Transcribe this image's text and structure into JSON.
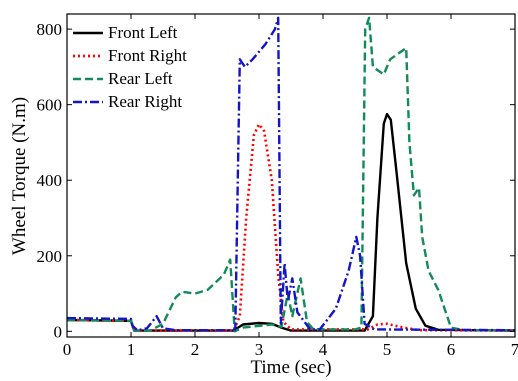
{
  "chart_data": {
    "type": "line",
    "xlabel": "Time (sec)",
    "ylabel": "Wheel Torque (N.m)",
    "xlim": [
      0,
      7
    ],
    "ylim": [
      -15,
      840
    ],
    "x_ticks": [
      0,
      1,
      2,
      3,
      4,
      5,
      6,
      7
    ],
    "y_ticks": [
      0,
      200,
      400,
      600,
      800
    ],
    "grid": false,
    "legend_position": "top-left",
    "series": [
      {
        "name": "Front Left",
        "color": "#000000",
        "dash": "solid",
        "points": [
          [
            0,
            30
          ],
          [
            1.0,
            28
          ],
          [
            1.05,
            2
          ],
          [
            2.6,
            2
          ],
          [
            2.75,
            18
          ],
          [
            3.0,
            22
          ],
          [
            3.2,
            20
          ],
          [
            3.35,
            10
          ],
          [
            3.5,
            2
          ],
          [
            4.65,
            2
          ],
          [
            4.78,
            40
          ],
          [
            4.85,
            300
          ],
          [
            4.95,
            550
          ],
          [
            5.0,
            575
          ],
          [
            5.06,
            560
          ],
          [
            5.15,
            420
          ],
          [
            5.3,
            180
          ],
          [
            5.45,
            60
          ],
          [
            5.6,
            15
          ],
          [
            5.8,
            4
          ],
          [
            7.0,
            2
          ]
        ]
      },
      {
        "name": "Front Right",
        "color": "#ff0000",
        "dash": "dot",
        "points": [
          [
            0,
            30
          ],
          [
            1.0,
            28
          ],
          [
            1.05,
            2
          ],
          [
            2.6,
            2
          ],
          [
            2.7,
            40
          ],
          [
            2.8,
            300
          ],
          [
            2.92,
            520
          ],
          [
            3.0,
            548
          ],
          [
            3.08,
            530
          ],
          [
            3.2,
            400
          ],
          [
            3.3,
            150
          ],
          [
            3.38,
            25
          ],
          [
            3.5,
            5
          ],
          [
            4.7,
            5
          ],
          [
            4.85,
            18
          ],
          [
            5.0,
            20
          ],
          [
            5.2,
            12
          ],
          [
            5.5,
            3
          ],
          [
            7.0,
            2
          ]
        ]
      },
      {
        "name": "Rear Left",
        "color": "#138a5a",
        "dash": "dash",
        "points": [
          [
            0,
            30
          ],
          [
            1.0,
            28
          ],
          [
            1.05,
            2
          ],
          [
            1.3,
            2
          ],
          [
            1.5,
            20
          ],
          [
            1.7,
            90
          ],
          [
            1.8,
            105
          ],
          [
            2.0,
            100
          ],
          [
            2.2,
            110
          ],
          [
            2.45,
            150
          ],
          [
            2.55,
            190
          ],
          [
            2.62,
            0
          ],
          [
            2.75,
            10
          ],
          [
            3.2,
            18
          ],
          [
            3.35,
            12
          ],
          [
            3.45,
            100
          ],
          [
            3.52,
            40
          ],
          [
            3.65,
            140
          ],
          [
            3.75,
            25
          ],
          [
            3.85,
            5
          ],
          [
            4.5,
            5
          ],
          [
            4.6,
            10
          ],
          [
            4.66,
            800
          ],
          [
            4.72,
            830
          ],
          [
            4.78,
            700
          ],
          [
            4.95,
            680
          ],
          [
            5.05,
            720
          ],
          [
            5.3,
            750
          ],
          [
            5.35,
            500
          ],
          [
            5.42,
            360
          ],
          [
            5.5,
            380
          ],
          [
            5.55,
            250
          ],
          [
            5.65,
            160
          ],
          [
            5.8,
            110
          ],
          [
            5.9,
            60
          ],
          [
            6.0,
            10
          ],
          [
            6.2,
            3
          ],
          [
            7.0,
            3
          ]
        ]
      },
      {
        "name": "Rear Right",
        "color": "#1515c8",
        "dash": "dashdot",
        "points": [
          [
            0,
            35
          ],
          [
            1.0,
            33
          ],
          [
            1.02,
            15
          ],
          [
            1.1,
            3
          ],
          [
            1.25,
            8
          ],
          [
            1.4,
            40
          ],
          [
            1.5,
            8
          ],
          [
            1.7,
            3
          ],
          [
            2.55,
            3
          ],
          [
            2.63,
            5
          ],
          [
            2.7,
            720
          ],
          [
            2.78,
            700
          ],
          [
            2.9,
            720
          ],
          [
            3.1,
            760
          ],
          [
            3.25,
            800
          ],
          [
            3.3,
            830
          ],
          [
            3.34,
            20
          ],
          [
            3.4,
            180
          ],
          [
            3.45,
            80
          ],
          [
            3.52,
            140
          ],
          [
            3.6,
            50
          ],
          [
            3.8,
            5
          ],
          [
            3.95,
            5
          ],
          [
            4.2,
            60
          ],
          [
            4.4,
            160
          ],
          [
            4.52,
            250
          ],
          [
            4.58,
            200
          ],
          [
            4.65,
            20
          ],
          [
            4.8,
            5
          ],
          [
            7.0,
            3
          ]
        ]
      }
    ]
  }
}
